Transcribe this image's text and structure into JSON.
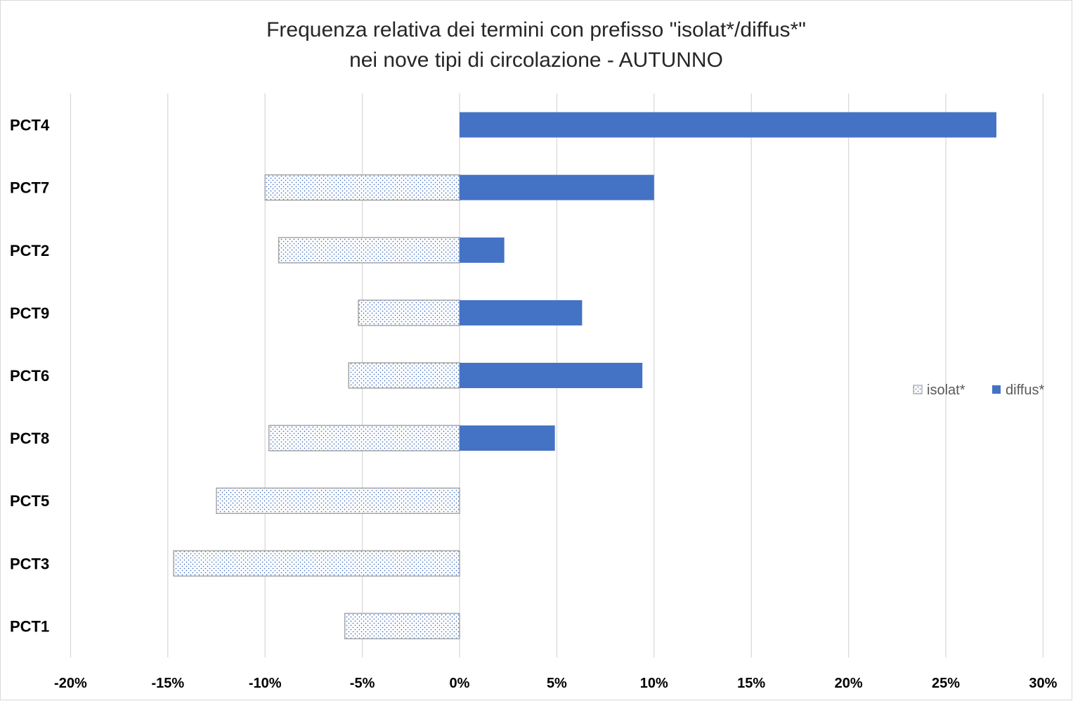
{
  "chart_data": {
    "type": "bar",
    "orientation": "horizontal",
    "title": [
      "Frequenza relativa dei termini con prefisso \"isolat*/diffus*\"",
      "nei nove tipi di circolazione - AUTUNNO"
    ],
    "categories": [
      "PCT4",
      "PCT7",
      "PCT2",
      "PCT9",
      "PCT6",
      "PCT8",
      "PCT5",
      "PCT3",
      "PCT1"
    ],
    "series": [
      {
        "name": "isolat*",
        "values": [
          0,
          -10.0,
          -9.3,
          -5.2,
          -5.7,
          -9.8,
          -12.5,
          -14.7,
          -5.9
        ],
        "color": "#4472C4",
        "border_color": "#A6A6A6",
        "fill_pattern": "dotted"
      },
      {
        "name": "diffus*",
        "values": [
          27.6,
          10.0,
          2.3,
          6.3,
          9.4,
          4.9,
          0,
          0,
          0
        ],
        "color": "#4472C4",
        "fill_pattern": "solid"
      }
    ],
    "xlim": [
      -20,
      30
    ],
    "x_ticks": [
      -20,
      -15,
      -10,
      -5,
      0,
      5,
      10,
      15,
      20,
      25,
      30
    ],
    "x_tick_labels": [
      "-20%",
      "-15%",
      "-10%",
      "-5%",
      "0%",
      "5%",
      "10%",
      "15%",
      "20%",
      "25%",
      "30%"
    ],
    "xlabel": "",
    "ylabel": "",
    "grid": {
      "x": true,
      "y": false
    },
    "legend": {
      "position": "right"
    },
    "colors": {
      "gridline": "#D9D9D9",
      "frame": "#D9D9D9"
    }
  }
}
